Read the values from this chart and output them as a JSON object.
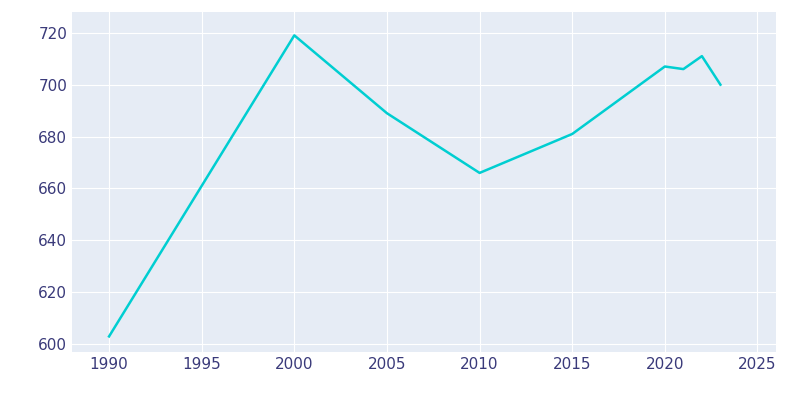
{
  "years": [
    1990,
    2000,
    2005,
    2010,
    2015,
    2020,
    2021,
    2022,
    2023
  ],
  "population": [
    603,
    719,
    689,
    666,
    681,
    707,
    706,
    711,
    700
  ],
  "line_color": "#00CED1",
  "fig_bg_color": "#ffffff",
  "plot_bg_color": "#E6ECF5",
  "grid_color": "#ffffff",
  "tick_color": "#3a3a7a",
  "xlim": [
    1988,
    2026
  ],
  "ylim": [
    597,
    728
  ],
  "xticks": [
    1990,
    1995,
    2000,
    2005,
    2010,
    2015,
    2020,
    2025
  ],
  "yticks": [
    600,
    620,
    640,
    660,
    680,
    700,
    720
  ],
  "line_width": 1.8
}
